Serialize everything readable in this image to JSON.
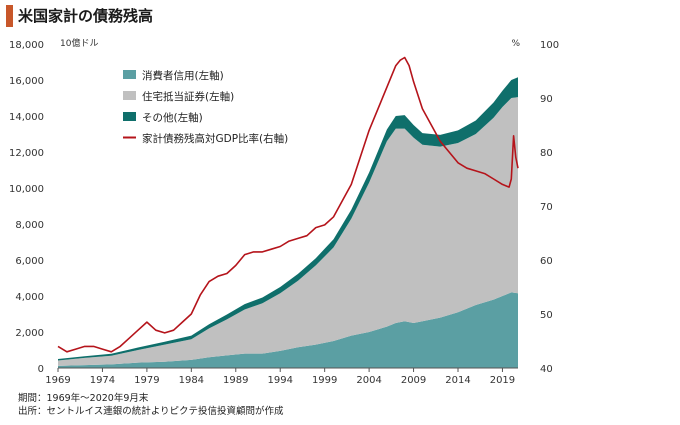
{
  "title": "米国家計の債務残高",
  "footnote": {
    "period": "期間：1969年～2020年9月末",
    "source": "出所：セントルイス連銀の統計よりピクテ投信投資顧問が作成"
  },
  "colors": {
    "consumer": "#5b9fa3",
    "mortgage": "#c0c0c0",
    "other": "#0f6f6b",
    "ratio": "#b5141b",
    "accent": "#c8572a"
  },
  "chart_data": {
    "type": "area",
    "title": "米国家計の債務残高",
    "left_unit": "10億ドル",
    "right_unit": "%",
    "ylim_left": [
      0,
      18000
    ],
    "ylim_right": [
      40,
      100
    ],
    "xlim": [
      1969,
      2020.75
    ],
    "x_ticks": [
      "1969",
      "1974",
      "1979",
      "1984",
      "1989",
      "1994",
      "1999",
      "2004",
      "2009",
      "2014",
      "2019"
    ],
    "y_ticks_left": [
      "0",
      "2,000",
      "4,000",
      "6,000",
      "8,000",
      "10,000",
      "12,000",
      "14,000",
      "16,000",
      "18,000"
    ],
    "y_ticks_right": [
      "40",
      "50",
      "60",
      "70",
      "80",
      "90",
      "100"
    ],
    "legend": [
      "消費者信用(左軸)",
      "住宅抵当証券(左軸)",
      "その他(左軸)",
      "家計債務残高対GDP比率(右軸)"
    ],
    "x": [
      1969,
      1972,
      1975,
      1978,
      1981,
      1984,
      1986,
      1988,
      1990,
      1992,
      1994,
      1996,
      1998,
      2000,
      2002,
      2004,
      2006,
      2007,
      2008,
      2009,
      2010,
      2012,
      2014,
      2016,
      2018,
      2019,
      2020,
      2020.75
    ],
    "series": [
      {
        "name": "消費者信用(左軸)",
        "axis": "left",
        "values": [
          120,
          160,
          200,
          300,
          350,
          450,
          600,
          700,
          800,
          800,
          950,
          1150,
          1300,
          1500,
          1800,
          2000,
          2300,
          2500,
          2600,
          2500,
          2600,
          2800,
          3100,
          3500,
          3800,
          4000,
          4200,
          4150
        ]
      },
      {
        "name": "住宅抵当証券(左軸)",
        "axis": "left",
        "values": [
          300,
          400,
          480,
          700,
          950,
          1150,
          1600,
          2000,
          2450,
          2800,
          3200,
          3700,
          4400,
          5200,
          6500,
          8300,
          10300,
          10800,
          10700,
          10300,
          9800,
          9500,
          9400,
          9500,
          10100,
          10500,
          10800,
          10900
        ]
      },
      {
        "name": "その他(左軸)",
        "axis": "left",
        "values": [
          80,
          90,
          110,
          140,
          160,
          200,
          230,
          270,
          300,
          320,
          350,
          380,
          400,
          450,
          500,
          560,
          650,
          700,
          750,
          700,
          650,
          650,
          700,
          750,
          850,
          900,
          1000,
          1100
        ]
      },
      {
        "name": "家計債務残高対GDP比率(右軸)",
        "axis": "right",
        "x": [
          1969,
          1970,
          1971,
          1972,
          1973,
          1974,
          1975,
          1976,
          1977,
          1978,
          1979,
          1980,
          1981,
          1982,
          1983,
          1984,
          1985,
          1986,
          1987,
          1988,
          1989,
          1990,
          1991,
          1992,
          1993,
          1994,
          1995,
          1996,
          1997,
          1998,
          1999,
          2000,
          2001,
          2002,
          2003,
          2004,
          2005,
          2006,
          2007,
          2007.5,
          2008,
          2008.5,
          2009,
          2010,
          2011,
          2012,
          2013,
          2014,
          2015,
          2016,
          2017,
          2018,
          2019,
          2019.75,
          2020.0,
          2020.25,
          2020.5,
          2020.75
        ],
        "values": [
          44,
          43,
          43.5,
          44,
          44,
          43.5,
          43,
          44,
          45.5,
          47,
          48.5,
          47,
          46.5,
          47,
          48.5,
          50,
          53.5,
          56,
          57,
          57.5,
          59,
          61,
          61.5,
          61.5,
          62,
          62.5,
          63.5,
          64,
          64.5,
          66,
          66.5,
          68,
          71,
          74,
          79,
          84,
          88,
          92,
          96,
          97,
          97.5,
          96,
          93,
          88,
          85,
          82,
          80,
          78,
          77,
          76.5,
          76,
          75,
          74,
          73.5,
          75,
          83,
          79,
          77
        ]
      }
    ],
    "grid": false,
    "legend_position": "top-left"
  }
}
